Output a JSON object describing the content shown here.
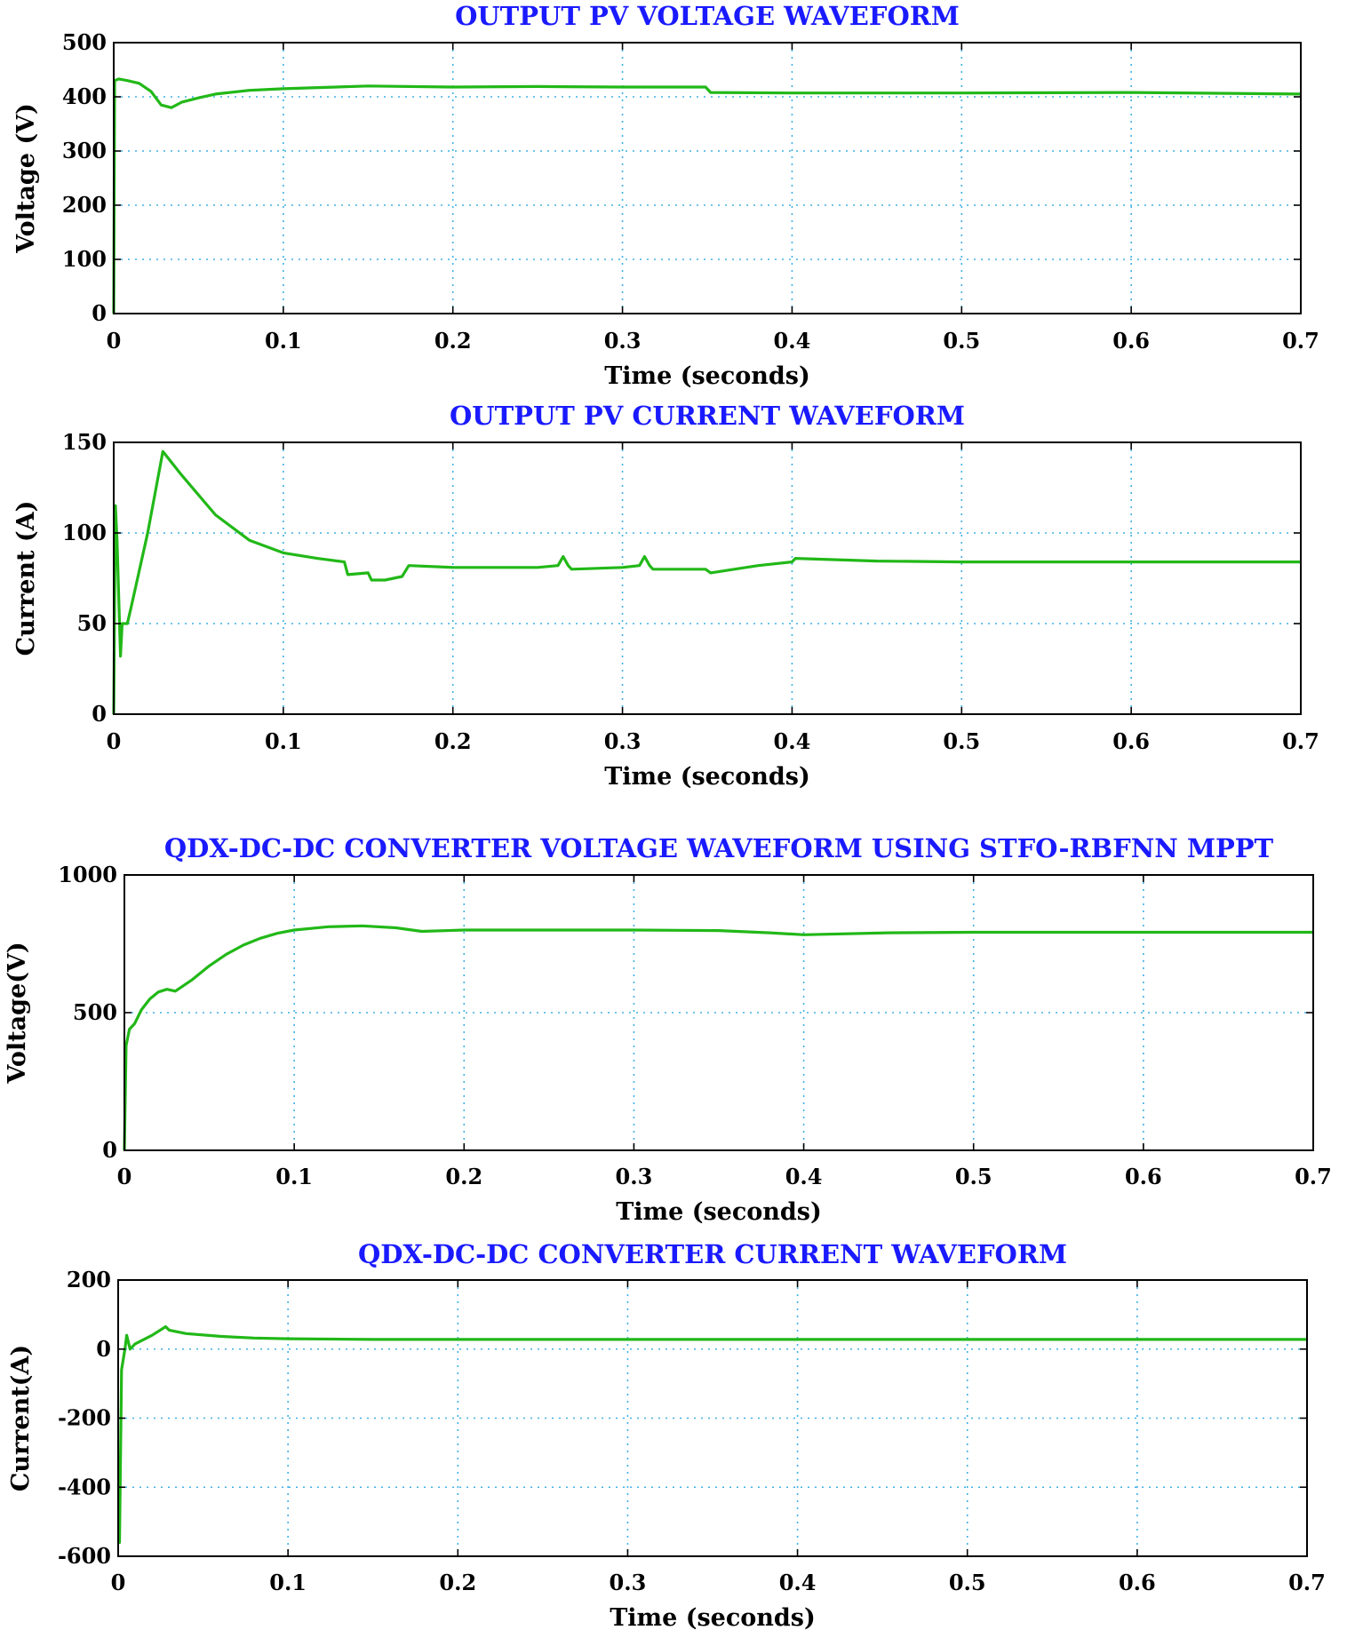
{
  "chart_data": [
    {
      "type": "line",
      "title": "OUTPUT PV VOLTAGE WAVEFORM",
      "xlabel": "Time (seconds)",
      "ylabel": "Voltage (V)",
      "xlim": [
        0,
        0.7
      ],
      "ylim": [
        0,
        500
      ],
      "xticks": [
        "0",
        "0.1",
        "0.2",
        "0.3",
        "0.4",
        "0.5",
        "0.6",
        "0.7"
      ],
      "yticks": [
        "0",
        "100",
        "200",
        "300",
        "400",
        "500"
      ],
      "grid": true,
      "color": "#22b818",
      "series": [
        {
          "x": [
            0,
            0.0005,
            0.003,
            0.008,
            0.015,
            0.022,
            0.028,
            0.034,
            0.04,
            0.05,
            0.06,
            0.08,
            0.1,
            0.15,
            0.2,
            0.25,
            0.3,
            0.349,
            0.352,
            0.4,
            0.5,
            0.6,
            0.7
          ],
          "y": [
            0,
            430,
            433,
            430,
            425,
            410,
            385,
            380,
            390,
            398,
            405,
            412,
            415,
            420,
            418,
            419,
            418,
            418,
            408,
            407,
            407,
            408,
            405
          ]
        }
      ]
    },
    {
      "type": "line",
      "title": "OUTPUT PV CURRENT WAVEFORM",
      "xlabel": "Time (seconds)",
      "ylabel": "Current (A)",
      "xlim": [
        0,
        0.7
      ],
      "ylim": [
        0,
        150
      ],
      "xticks": [
        "0",
        "0.1",
        "0.2",
        "0.3",
        "0.4",
        "0.5",
        "0.6",
        "0.7"
      ],
      "yticks": [
        "0",
        "50",
        "100",
        "150"
      ],
      "grid": true,
      "color": "#22b818",
      "series": [
        {
          "x": [
            0,
            0.001,
            0.002,
            0.004,
            0.005,
            0.008,
            0.01,
            0.02,
            0.029,
            0.04,
            0.06,
            0.08,
            0.1,
            0.12,
            0.136,
            0.138,
            0.15,
            0.152,
            0.16,
            0.17,
            0.174,
            0.2,
            0.25,
            0.262,
            0.265,
            0.268,
            0.27,
            0.3,
            0.31,
            0.313,
            0.316,
            0.318,
            0.349,
            0.352,
            0.38,
            0.4,
            0.402,
            0.45,
            0.5,
            0.6,
            0.7
          ],
          "y": [
            0,
            115,
            95,
            32,
            50,
            50,
            58,
            100,
            145,
            132,
            110,
            96,
            89,
            86,
            84,
            77,
            78,
            74,
            74,
            76,
            82,
            81,
            81,
            82,
            87,
            82,
            80,
            81,
            82,
            87,
            82,
            80,
            80,
            78,
            82,
            84,
            86,
            84.5,
            84,
            84,
            84
          ]
        }
      ]
    },
    {
      "type": "line",
      "title": "QDX-DC-DC CONVERTER VOLTAGE WAVEFORM USING STFO-RBFNN MPPT",
      "xlabel": "Time (seconds)",
      "ylabel": "Voltage(V)",
      "xlim": [
        0,
        0.7
      ],
      "ylim": [
        0,
        1000
      ],
      "xticks": [
        "0",
        "0.1",
        "0.2",
        "0.3",
        "0.4",
        "0.5",
        "0.6",
        "0.7"
      ],
      "yticks": [
        "0",
        "500",
        "1000"
      ],
      "grid": true,
      "color": "#22b818",
      "series": [
        {
          "x": [
            0,
            0.001,
            0.003,
            0.006,
            0.01,
            0.015,
            0.02,
            0.025,
            0.03,
            0.04,
            0.05,
            0.06,
            0.07,
            0.08,
            0.09,
            0.1,
            0.12,
            0.14,
            0.16,
            0.175,
            0.2,
            0.3,
            0.35,
            0.38,
            0.4,
            0.45,
            0.5,
            0.6,
            0.7
          ],
          "y": [
            0,
            380,
            440,
            460,
            510,
            550,
            575,
            585,
            578,
            620,
            670,
            712,
            745,
            770,
            788,
            800,
            812,
            815,
            808,
            795,
            800,
            800,
            798,
            790,
            783,
            790,
            792,
            792,
            792
          ]
        }
      ]
    },
    {
      "type": "line",
      "title": "QDX-DC-DC CONVERTER CURRENT WAVEFORM",
      "xlabel": "Time (seconds)",
      "ylabel": "Current(A)",
      "xlim": [
        0,
        0.7
      ],
      "ylim": [
        -600,
        200
      ],
      "xticks": [
        "0",
        "0.1",
        "0.2",
        "0.3",
        "0.4",
        "0.5",
        "0.6",
        "0.7"
      ],
      "yticks": [
        "200",
        "0",
        "-200",
        "-400",
        "-600"
      ],
      "grid": true,
      "color": "#22b818",
      "series": [
        {
          "x": [
            0,
            0.0008,
            0.002,
            0.004,
            0.005,
            0.007,
            0.01,
            0.02,
            0.028,
            0.03,
            0.04,
            0.06,
            0.08,
            0.1,
            0.15,
            0.2,
            0.3,
            0.4,
            0.5,
            0.6,
            0.7
          ],
          "y": [
            -560,
            -560,
            -60,
            0,
            40,
            0,
            15,
            40,
            65,
            55,
            45,
            37,
            32,
            30,
            28,
            28,
            28,
            28,
            28,
            28,
            28
          ]
        }
      ]
    }
  ]
}
